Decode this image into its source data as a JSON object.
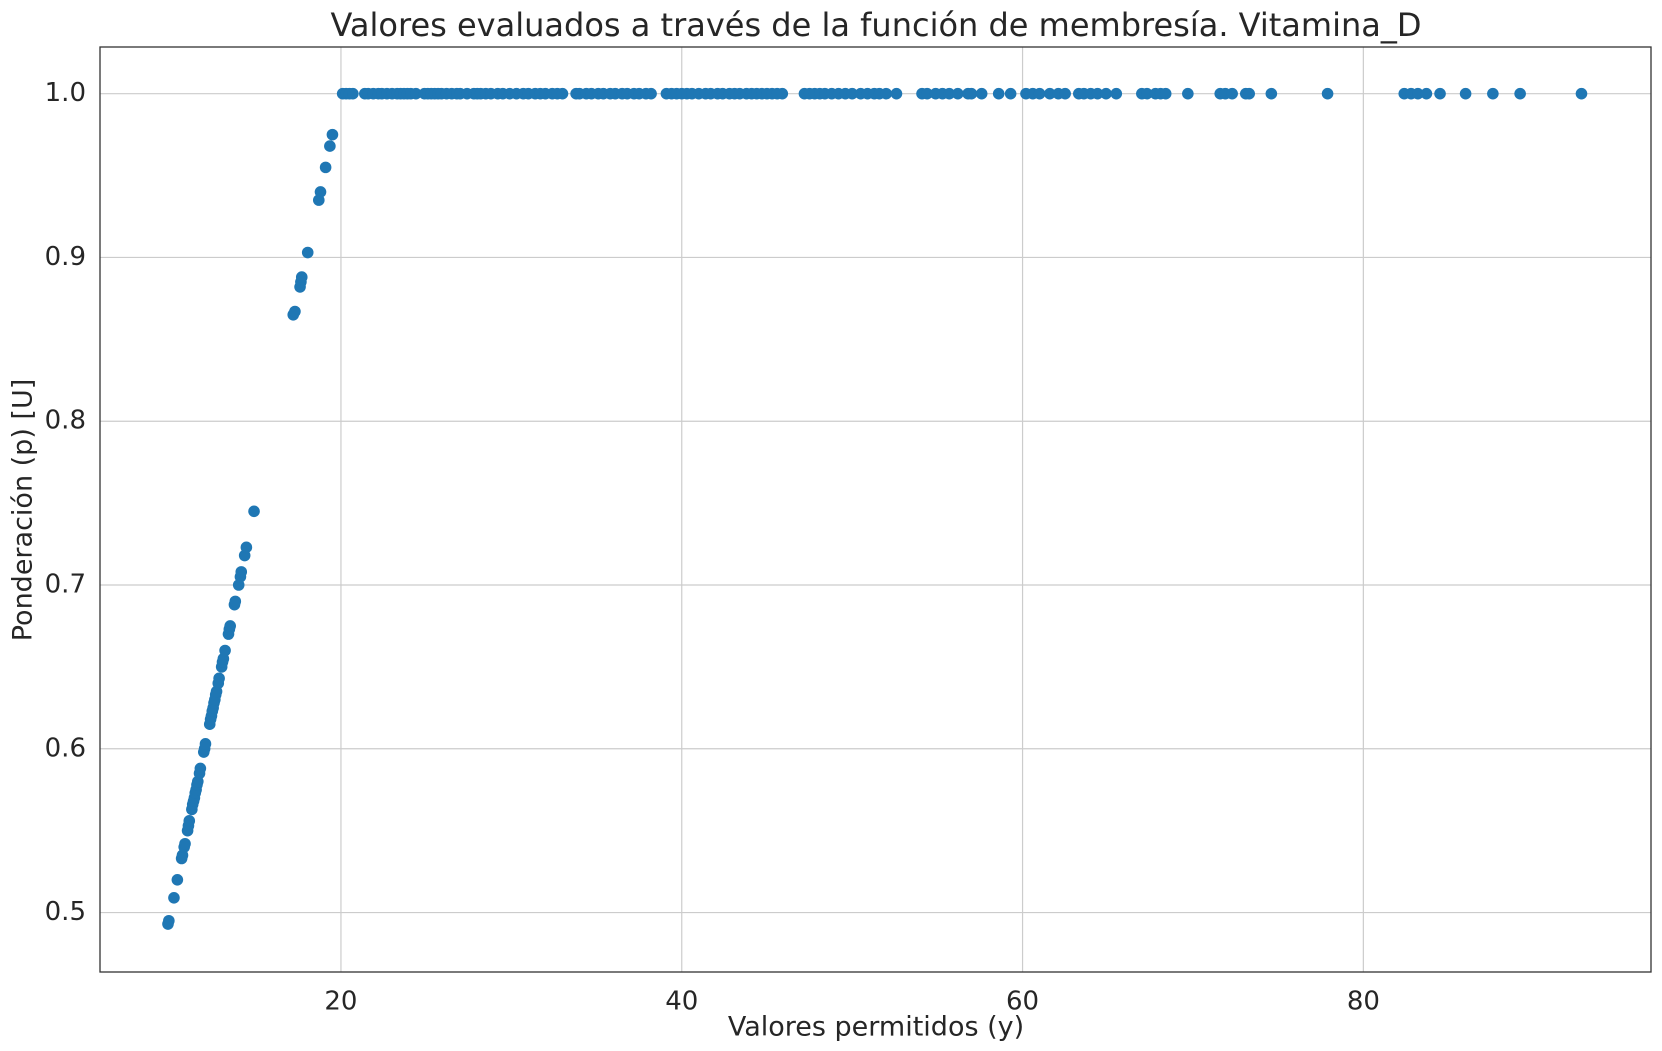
{
  "chart_data": {
    "type": "scatter",
    "title": "Valores evaluados a través de la función de membresía. Vitamina_D",
    "x_label": "Valores permitidos (y)",
    "y_label": "Ponderación (p) [U]",
    "color": "#1f77b4",
    "grid": true,
    "xlim": [
      5.86,
      96.88
    ],
    "ylim": [
      0.4637,
      1.0285
    ],
    "xticks": [
      20,
      40,
      60,
      80
    ],
    "yticks": [
      0.5,
      0.6,
      0.7,
      0.8,
      0.9,
      {
        "value": 1,
        "label": "1.0"
      }
    ],
    "x": [
      9.85,
      9.9,
      10.2,
      10.4,
      10.65,
      10.7,
      10.8,
      10.85,
      11.0,
      11.05,
      11.1,
      11.25,
      11.3,
      11.35,
      11.4,
      11.45,
      11.5,
      11.55,
      11.6,
      11.7,
      11.75,
      11.95,
      12.0,
      12.05,
      12.3,
      12.35,
      12.4,
      12.45,
      12.5,
      12.55,
      12.6,
      12.65,
      12.7,
      12.8,
      12.85,
      13.0,
      13.05,
      13.1,
      13.2,
      13.4,
      13.45,
      13.5,
      13.75,
      13.8,
      14.0,
      14.1,
      14.15,
      14.35,
      14.45,
      14.9,
      17.2,
      17.3,
      17.6,
      17.65,
      17.7,
      18.05,
      18.7,
      18.8,
      19.1,
      19.35,
      19.5,
      20.1,
      20.3,
      20.5,
      20.7,
      21.4,
      21.6,
      21.9,
      22.2,
      22.4,
      22.7,
      23.0,
      23.3,
      23.5,
      23.7,
      23.9,
      24.1,
      24.4,
      24.9,
      25.1,
      25.3,
      25.5,
      25.7,
      25.9,
      26.2,
      26.5,
      26.8,
      27.0,
      27.4,
      27.8,
      28.0,
      28.2,
      28.5,
      28.8,
      29.2,
      29.5,
      29.9,
      30.3,
      30.7,
      31.0,
      31.4,
      31.7,
      32.0,
      32.4,
      32.7,
      33.0,
      33.8,
      34.0,
      34.4,
      34.7,
      35.1,
      35.4,
      35.8,
      36.1,
      36.5,
      36.8,
      37.2,
      37.5,
      37.9,
      38.2,
      39.1,
      39.4,
      39.7,
      40.0,
      40.3,
      40.6,
      41.0,
      41.4,
      41.7,
      42.1,
      42.4,
      42.8,
      43.1,
      43.4,
      43.8,
      44.1,
      44.4,
      44.7,
      45.0,
      45.3,
      45.6,
      45.9,
      47.2,
      47.5,
      47.8,
      48.1,
      48.4,
      48.8,
      49.2,
      49.6,
      50.0,
      50.5,
      50.9,
      51.3,
      51.6,
      52.0,
      52.6,
      54.1,
      54.4,
      54.9,
      55.3,
      55.7,
      56.2,
      56.8,
      57.0,
      57.6,
      58.6,
      59.3,
      60.2,
      60.6,
      61.0,
      61.6,
      62.1,
      62.5,
      63.3,
      63.6,
      64.0,
      64.4,
      64.9,
      65.5,
      67.0,
      67.3,
      67.8,
      68.1,
      68.4,
      69.7,
      71.6,
      71.9,
      72.3,
      73.1,
      73.3,
      74.6,
      77.9,
      82.4,
      82.8,
      83.2,
      83.7,
      84.5,
      86.0,
      87.6,
      89.2,
      92.8
    ],
    "values": [
      0.493,
      0.495,
      0.509,
      0.52,
      0.533,
      0.535,
      0.54,
      0.542,
      0.55,
      0.553,
      0.556,
      0.563,
      0.566,
      0.568,
      0.57,
      0.573,
      0.575,
      0.578,
      0.58,
      0.585,
      0.588,
      0.598,
      0.6,
      0.603,
      0.615,
      0.618,
      0.62,
      0.623,
      0.625,
      0.628,
      0.63,
      0.633,
      0.635,
      0.64,
      0.643,
      0.65,
      0.653,
      0.655,
      0.66,
      0.67,
      0.673,
      0.675,
      0.688,
      0.69,
      0.7,
      0.705,
      0.708,
      0.718,
      0.723,
      0.745,
      0.865,
      0.867,
      0.882,
      0.885,
      0.888,
      0.903,
      0.935,
      0.94,
      0.955,
      0.968,
      0.975,
      1,
      1,
      1,
      1,
      1,
      1,
      1,
      1,
      1,
      1,
      1,
      1,
      1,
      1,
      1,
      1,
      1,
      1,
      1,
      1,
      1,
      1,
      1,
      1,
      1,
      1,
      1,
      1,
      1,
      1,
      1,
      1,
      1,
      1,
      1,
      1,
      1,
      1,
      1,
      1,
      1,
      1,
      1,
      1,
      1,
      1,
      1,
      1,
      1,
      1,
      1,
      1,
      1,
      1,
      1,
      1,
      1,
      1,
      1,
      1,
      1,
      1,
      1,
      1,
      1,
      1,
      1,
      1,
      1,
      1,
      1,
      1,
      1,
      1,
      1,
      1,
      1,
      1,
      1,
      1,
      1,
      1,
      1,
      1,
      1,
      1,
      1,
      1,
      1,
      1,
      1,
      1,
      1,
      1,
      1,
      1,
      1,
      1,
      1,
      1,
      1,
      1,
      1,
      1,
      1,
      1,
      1,
      1,
      1,
      1,
      1,
      1,
      1,
      1,
      1,
      1,
      1,
      1,
      1,
      1,
      1,
      1,
      1,
      1,
      1,
      1,
      1,
      1,
      1,
      1,
      1,
      1,
      1,
      1,
      1,
      1,
      1,
      1,
      1,
      1,
      1
    ]
  }
}
